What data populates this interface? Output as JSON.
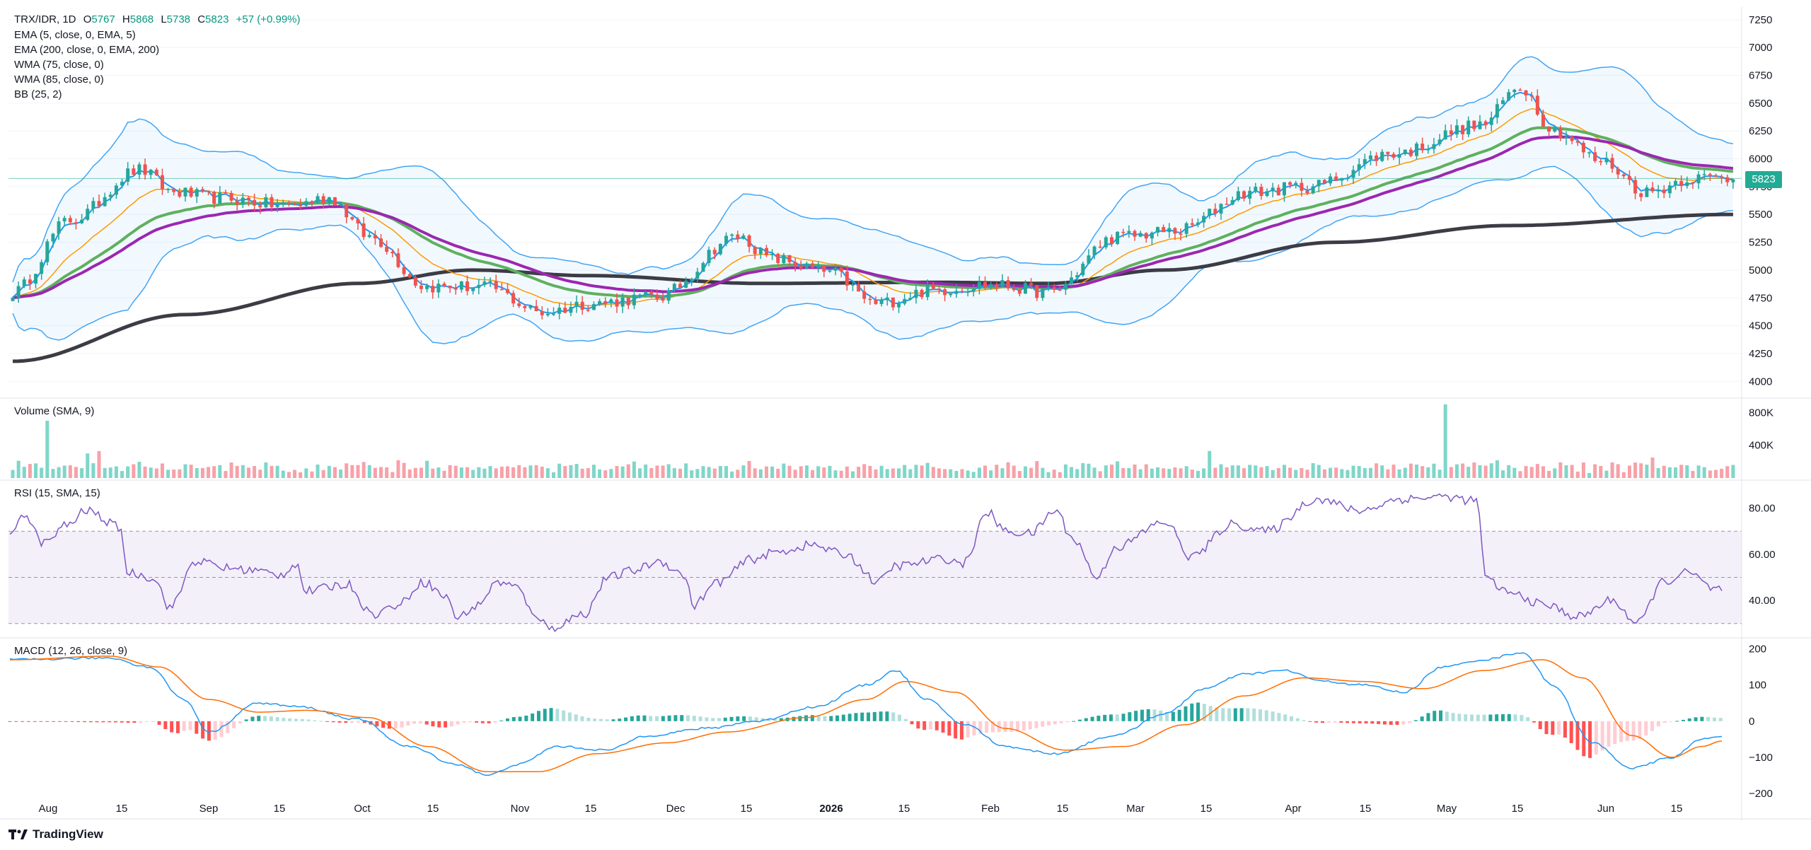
{
  "header": {
    "symbol": "TRX/IDR",
    "interval": "1D",
    "open_label": "O",
    "open": "5767",
    "high_label": "H",
    "high": "5868",
    "low_label": "L",
    "low": "5738",
    "close_label": "C",
    "close": "5823",
    "change": "+57 (+0.99%)"
  },
  "indicators": [
    "EMA (5, close, 0, EMA, 5)",
    "EMA (200, close, 0, EMA, 200)",
    "WMA (75, close, 0)",
    "WMA (85, close, 0)",
    "BB (25, 2)"
  ],
  "panes": {
    "volume_title": "Volume (SMA, 9)",
    "rsi_title": "RSI (15, SMA, 15)",
    "macd_title": "MACD (12, 26, close, 9)"
  },
  "last_price": "5823",
  "watermark": "TradingView",
  "colors": {
    "up": "#26a69a",
    "down": "#ef5350",
    "ema5": "#2196f3",
    "ema200": "#3c3c46",
    "wma75": "#5fb05f",
    "wma85": "#9c27b0",
    "bb": "#42a5f5",
    "rsi": "#7e57c2",
    "macd": "#2196f3",
    "signal": "#ff6d00"
  },
  "chart_data": {
    "type": "candlestick",
    "price_axis": {
      "ticks": [
        4000,
        4250,
        4500,
        4750,
        5000,
        5250,
        5500,
        5750,
        6000,
        6250,
        6500,
        6750,
        7000,
        7250
      ],
      "range": [
        3900,
        7300
      ]
    },
    "volume_axis": {
      "ticks": [
        "400K",
        "800K"
      ],
      "tick_values": [
        400000,
        800000
      ],
      "range": [
        0,
        950000
      ]
    },
    "rsi_axis": {
      "ticks": [
        "40.00",
        "60.00",
        "80.00"
      ],
      "tick_values": [
        40,
        60,
        80
      ],
      "bands": [
        30,
        50,
        70
      ],
      "range": [
        25,
        90
      ]
    },
    "macd_axis": {
      "ticks": [
        "−200",
        "−100",
        "0",
        "100",
        "200"
      ],
      "tick_values": [
        -200,
        -100,
        0,
        100,
        200
      ],
      "range": [
        -200,
        215
      ]
    },
    "time_axis": {
      "labels": [
        "Aug",
        "15",
        "Sep",
        "15",
        "Oct",
        "15",
        "Nov",
        "15",
        "Dec",
        "15",
        "2026",
        "15",
        "Feb",
        "15",
        "Mar",
        "15",
        "Apr",
        "15",
        "May",
        "15",
        "Jun",
        "15"
      ],
      "bold": [
        false,
        false,
        false,
        false,
        false,
        false,
        false,
        false,
        false,
        false,
        true,
        false,
        false,
        false,
        false,
        false,
        false,
        false,
        false,
        false,
        false,
        false
      ]
    },
    "price_key_points": [
      [
        0,
        4800
      ],
      [
        10,
        5450
      ],
      [
        22,
        5900
      ],
      [
        28,
        5700
      ],
      [
        35,
        5650
      ],
      [
        48,
        5580
      ],
      [
        55,
        5650
      ],
      [
        62,
        5300
      ],
      [
        72,
        4850
      ],
      [
        82,
        4850
      ],
      [
        92,
        4620
      ],
      [
        100,
        4700
      ],
      [
        112,
        4760
      ],
      [
        126,
        5300
      ],
      [
        132,
        5100
      ],
      [
        142,
        4980
      ],
      [
        150,
        4700
      ],
      [
        160,
        4820
      ],
      [
        170,
        4870
      ],
      [
        180,
        4800
      ],
      [
        192,
        5300
      ],
      [
        202,
        5350
      ],
      [
        215,
        5700
      ],
      [
        225,
        5750
      ],
      [
        240,
        6050
      ],
      [
        255,
        6300
      ],
      [
        262,
        6650
      ],
      [
        268,
        6250
      ],
      [
        276,
        5980
      ],
      [
        284,
        5700
      ],
      [
        292,
        5830
      ],
      [
        299,
        5823
      ]
    ],
    "ema200_key_points": [
      [
        0,
        4180
      ],
      [
        30,
        4600
      ],
      [
        60,
        4880
      ],
      [
        80,
        5000
      ],
      [
        100,
        4950
      ],
      [
        130,
        4880
      ],
      [
        160,
        4890
      ],
      [
        180,
        4880
      ],
      [
        200,
        5000
      ],
      [
        230,
        5250
      ],
      [
        260,
        5400
      ],
      [
        299,
        5500
      ]
    ],
    "rsi_key_points": [
      [
        0,
        67
      ],
      [
        3,
        78
      ],
      [
        8,
        65
      ],
      [
        14,
        73
      ],
      [
        18,
        79
      ],
      [
        26,
        72
      ],
      [
        28,
        52
      ],
      [
        34,
        50
      ],
      [
        38,
        37
      ],
      [
        44,
        57
      ],
      [
        52,
        54
      ],
      [
        58,
        53
      ],
      [
        64,
        51
      ],
      [
        68,
        56
      ],
      [
        70,
        44
      ],
      [
        80,
        47
      ],
      [
        86,
        34
      ],
      [
        92,
        38
      ],
      [
        98,
        48
      ],
      [
        104,
        41
      ],
      [
        106,
        32
      ],
      [
        110,
        37
      ],
      [
        116,
        48
      ],
      [
        120,
        46
      ],
      [
        124,
        35
      ],
      [
        128,
        28
      ],
      [
        136,
        34
      ],
      [
        142,
        50
      ],
      [
        148,
        53
      ],
      [
        154,
        57
      ],
      [
        160,
        51
      ],
      [
        162,
        38
      ],
      [
        168,
        48
      ],
      [
        176,
        58
      ],
      [
        182,
        61
      ],
      [
        190,
        64
      ],
      [
        198,
        60
      ],
      [
        206,
        48
      ],
      [
        210,
        55
      ],
      [
        222,
        58
      ],
      [
        226,
        56
      ],
      [
        232,
        78
      ],
      [
        236,
        70
      ],
      [
        242,
        69
      ],
      [
        248,
        79
      ],
      [
        252,
        67
      ],
      [
        258,
        50
      ],
      [
        262,
        63
      ],
      [
        274,
        74
      ],
      [
        280,
        59
      ],
      [
        290,
        73
      ],
      [
        298,
        70
      ],
      [
        310,
        84
      ],
      [
        320,
        79
      ],
      [
        330,
        84
      ],
      [
        340,
        85
      ],
      [
        348,
        83
      ],
      [
        350,
        49
      ],
      [
        356,
        43
      ],
      [
        364,
        38
      ],
      [
        372,
        33
      ],
      [
        380,
        40
      ],
      [
        386,
        30
      ],
      [
        392,
        48
      ],
      [
        398,
        52
      ],
      [
        404,
        45
      ],
      [
        406,
        45
      ]
    ],
    "macd_key_points": [
      [
        0,
        170
      ],
      [
        20,
        175
      ],
      [
        28,
        150
      ],
      [
        35,
        60
      ],
      [
        40,
        -30
      ],
      [
        50,
        50
      ],
      [
        58,
        40
      ],
      [
        70,
        5
      ],
      [
        80,
        -70
      ],
      [
        90,
        -120
      ],
      [
        96,
        -150
      ],
      [
        102,
        -120
      ],
      [
        110,
        -70
      ],
      [
        120,
        -80
      ],
      [
        128,
        -40
      ],
      [
        140,
        -20
      ],
      [
        150,
        0
      ],
      [
        162,
        40
      ],
      [
        172,
        100
      ],
      [
        178,
        140
      ],
      [
        184,
        60
      ],
      [
        192,
        -10
      ],
      [
        200,
        -70
      ],
      [
        210,
        -90
      ],
      [
        222,
        -40
      ],
      [
        232,
        20
      ],
      [
        240,
        90
      ],
      [
        248,
        130
      ],
      [
        256,
        140
      ],
      [
        264,
        110
      ],
      [
        272,
        100
      ],
      [
        280,
        80
      ],
      [
        288,
        150
      ],
      [
        296,
        170
      ],
      [
        304,
        190
      ],
      [
        310,
        100
      ],
      [
        318,
        -60
      ],
      [
        326,
        -130
      ],
      [
        334,
        -100
      ],
      [
        340,
        -50
      ],
      [
        344,
        -40
      ]
    ],
    "signal_key_points": [
      [
        0,
        170
      ],
      [
        20,
        180
      ],
      [
        30,
        150
      ],
      [
        40,
        60
      ],
      [
        50,
        25
      ],
      [
        60,
        30
      ],
      [
        72,
        10
      ],
      [
        84,
        -70
      ],
      [
        96,
        -140
      ],
      [
        106,
        -140
      ],
      [
        118,
        -90
      ],
      [
        132,
        -60
      ],
      [
        144,
        -30
      ],
      [
        160,
        10
      ],
      [
        172,
        60
      ],
      [
        180,
        110
      ],
      [
        190,
        80
      ],
      [
        200,
        -20
      ],
      [
        212,
        -80
      ],
      [
        224,
        -70
      ],
      [
        236,
        -10
      ],
      [
        248,
        70
      ],
      [
        260,
        120
      ],
      [
        272,
        110
      ],
      [
        284,
        90
      ],
      [
        296,
        140
      ],
      [
        308,
        170
      ],
      [
        316,
        120
      ],
      [
        326,
        -40
      ],
      [
        334,
        -100
      ],
      [
        340,
        -70
      ],
      [
        344,
        -55
      ]
    ]
  }
}
